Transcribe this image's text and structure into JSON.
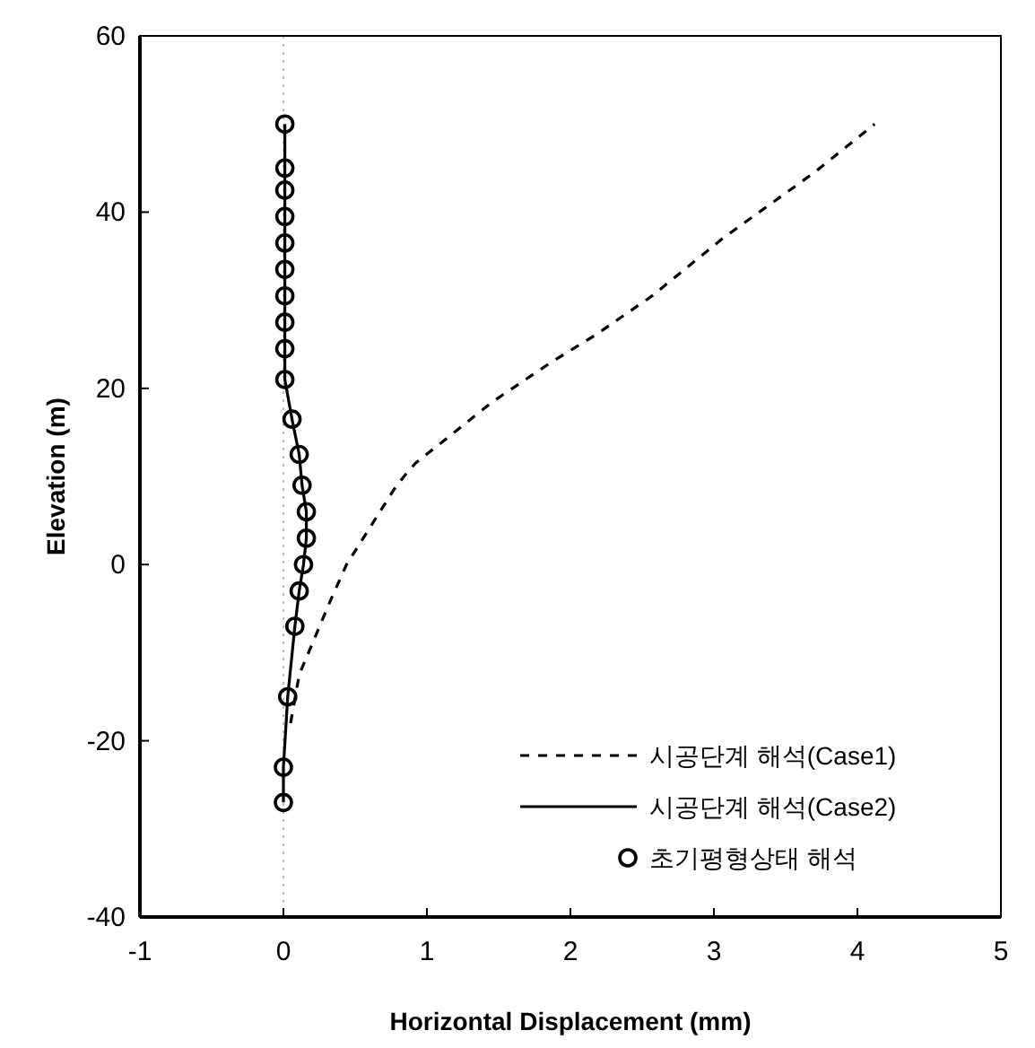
{
  "chart_data": {
    "type": "line",
    "xlabel": "Horizontal Displacement (mm)",
    "ylabel": "Elevation (m)",
    "xlim": [
      -1,
      5
    ],
    "ylim": [
      -40,
      60
    ],
    "xticks": [
      -1,
      0,
      1,
      2,
      3,
      4,
      5
    ],
    "yticks": [
      -40,
      -20,
      0,
      20,
      40,
      60
    ],
    "legend": "bottom right",
    "ref_lines": [
      {
        "axis": "x",
        "value": 0,
        "color": "#bbbbbb",
        "line_style": "dotted"
      }
    ],
    "series": [
      {
        "name": "시공단계 해석(Case1)",
        "type": "line",
        "line_style": "dashed",
        "color": "#000000",
        "x": [
          0.05,
          0.11,
          0.33,
          0.44,
          0.77,
          0.84,
          0.92,
          1.46,
          1.87,
          2.17,
          2.57,
          3.06,
          3.7,
          4.12
        ],
        "values": [
          -18,
          -12.5,
          -4,
          0,
          8.5,
          10,
          11.5,
          18.5,
          23,
          26,
          30.5,
          37,
          44.5,
          50
        ]
      },
      {
        "name": "시공단계 해석(Case2)",
        "type": "line",
        "line_style": "solid",
        "color": "#000000",
        "x": [
          0.01,
          0.01,
          0.01,
          0.01,
          0.01,
          0.01,
          0.01,
          0.01,
          0.01,
          0.01,
          0.06,
          0.11,
          0.13,
          0.16,
          0.16,
          0.14,
          0.11,
          0.08,
          0.03,
          0,
          0
        ],
        "values": [
          50,
          45,
          42.5,
          39.5,
          36.5,
          33.5,
          30.5,
          27.5,
          24.5,
          21,
          16.5,
          12.5,
          9,
          6,
          3,
          0,
          -3,
          -7,
          -15,
          -23,
          -27
        ]
      },
      {
        "name": "초기평형상태 해석",
        "type": "scatter",
        "marker": "circle",
        "color": "#000000",
        "x": [
          0.01,
          0.01,
          0.01,
          0.01,
          0.01,
          0.01,
          0.01,
          0.01,
          0.01,
          0.01,
          0.06,
          0.11,
          0.13,
          0.16,
          0.16,
          0.14,
          0.11,
          0.08,
          0.03,
          0,
          0
        ],
        "values": [
          50,
          45,
          42.5,
          39.5,
          36.5,
          33.5,
          30.5,
          27.5,
          24.5,
          21,
          16.5,
          12.5,
          9,
          6,
          3,
          0,
          -3,
          -7,
          -15,
          -23,
          -27
        ]
      }
    ]
  }
}
